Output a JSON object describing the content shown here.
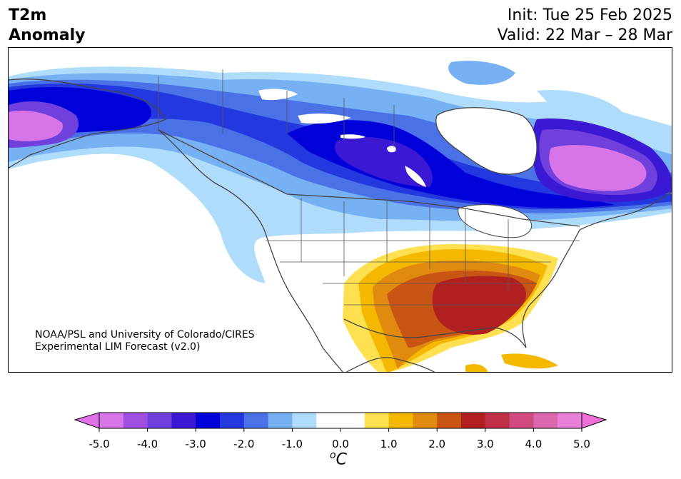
{
  "header": {
    "title_line1": "T2m",
    "title_line2": "Anomaly",
    "init": "Init: Tue 25 Feb 2025",
    "valid": "Valid: 22 Mar – 28 Mar"
  },
  "credit": {
    "line1": "NOAA/PSL and University of Colorado/CIRES",
    "line2": "Experimental LIM Forecast (v2.0)"
  },
  "colorbar": {
    "unit_sup": "o",
    "unit": "C",
    "ticks": [
      "-5.0",
      "-4.0",
      "-3.0",
      "-2.0",
      "-1.0",
      "0.0",
      "1.0",
      "2.0",
      "3.0",
      "4.0",
      "5.0"
    ],
    "colors": [
      "#d674e8",
      "#a050e0",
      "#7040dc",
      "#3a18d4",
      "#0000d8",
      "#2438e0",
      "#4a72e6",
      "#78b0f4",
      "#b0dcfc",
      "#ffffff",
      "#ffffff",
      "#fee050",
      "#f4b800",
      "#e08a10",
      "#c85514",
      "#b02020",
      "#c03048",
      "#d04c80",
      "#dc68b0",
      "#e880d8"
    ],
    "low_extend": "#e070e8",
    "high_extend": "#f070d8"
  }
}
